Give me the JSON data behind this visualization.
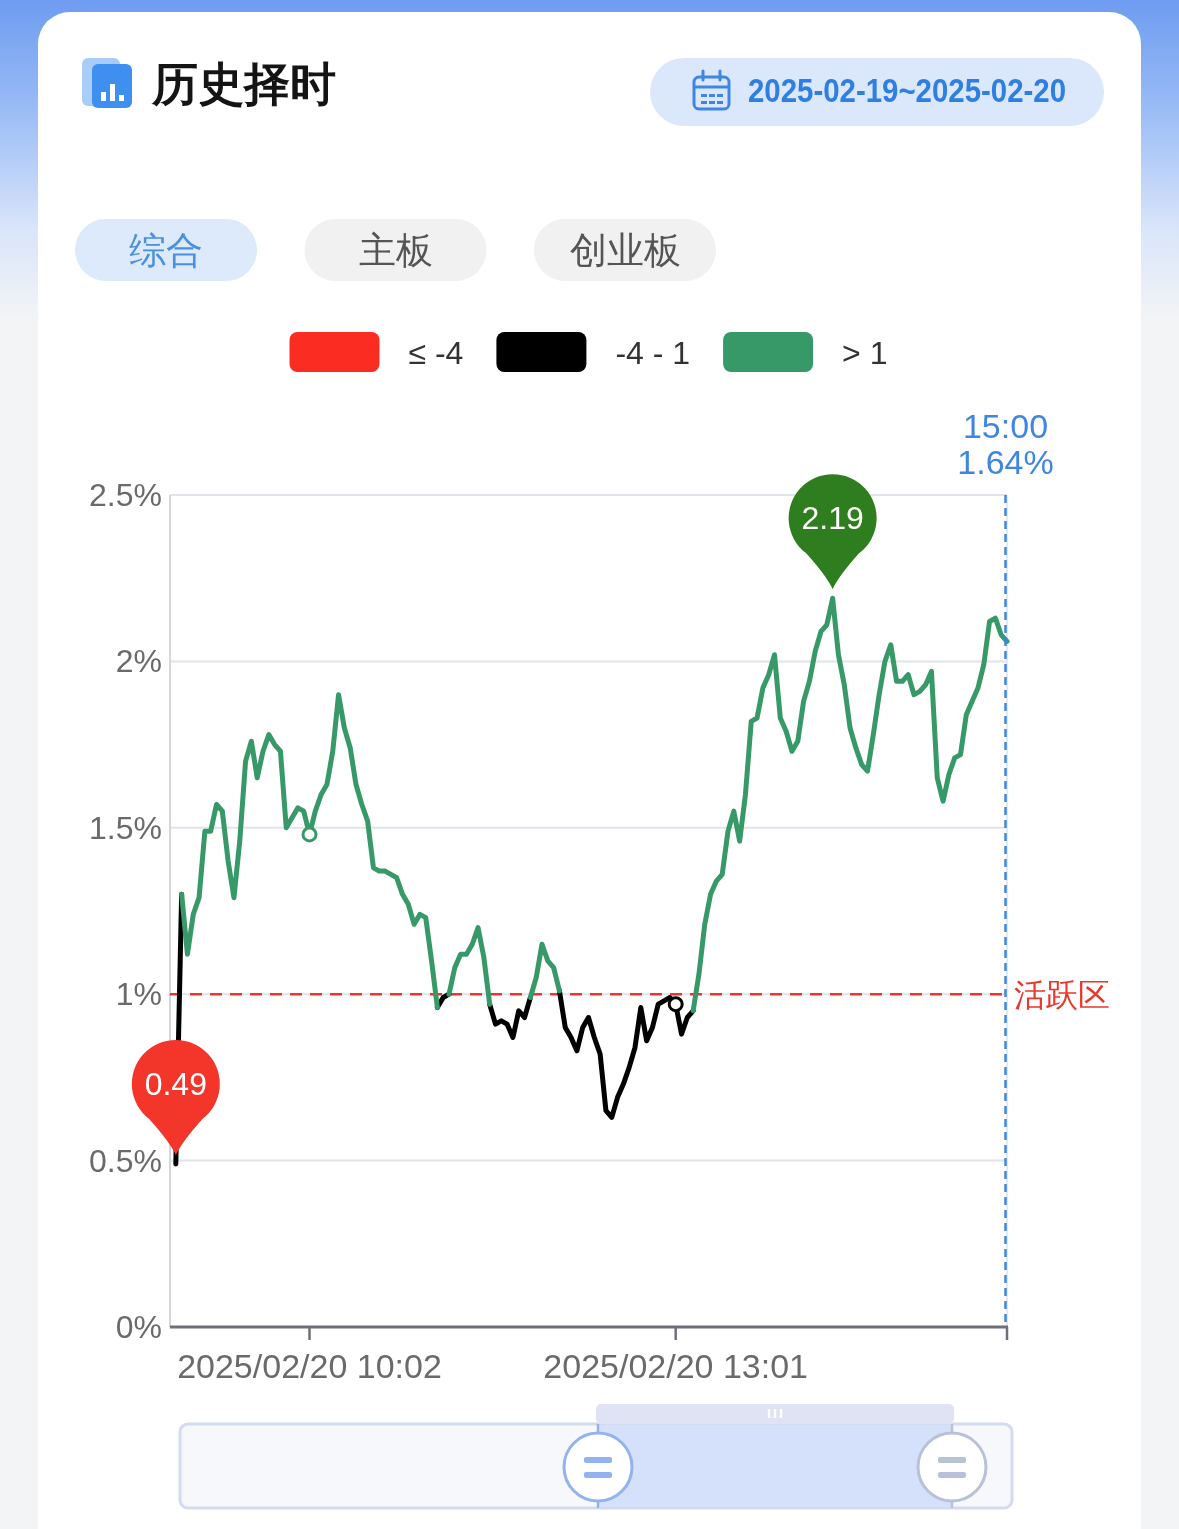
{
  "chart_data": {
    "type": "line",
    "title": "历史择时",
    "subtitle": "2025-02-19~2025-02-20",
    "annotations": [
      "综合",
      "主板",
      "创业板",
      "15:00 1.64%",
      {
        "text": "0.49",
        "y": 0.49
      },
      {
        "text": "2.19",
        "y": 2.19
      }
    ],
    "categories": [
      null,
      null,
      null,
      null,
      null,
      null,
      null,
      null,
      null,
      null,
      null,
      null,
      null,
      null,
      null,
      null,
      null,
      null,
      null,
      null,
      null,
      null,
      null,
      null,
      "2025/02/20 10:02",
      null,
      null,
      null,
      null,
      null,
      null,
      null,
      null,
      null,
      null,
      null,
      null,
      null,
      null,
      null,
      null,
      null,
      null,
      null,
      null,
      null,
      null,
      null,
      null,
      null,
      null,
      null,
      null,
      null,
      null,
      null,
      null,
      null,
      null,
      null,
      null,
      null,
      null,
      null,
      null,
      null,
      null,
      null,
      null,
      null,
      null,
      null,
      null,
      null,
      null,
      null,
      null,
      null,
      null,
      null,
      null,
      null,
      null,
      null,
      null,
      null,
      null,
      "2025/02/20 13:01",
      null,
      null,
      null,
      null,
      null,
      null,
      null,
      null,
      null,
      null,
      null,
      null,
      null,
      null,
      null,
      null,
      null,
      null,
      null,
      null,
      null,
      null,
      null,
      null,
      null,
      null,
      null,
      null,
      null,
      null,
      null,
      null,
      null,
      null,
      null,
      null,
      null,
      null,
      null,
      null,
      null,
      null,
      null,
      null,
      null,
      null,
      null,
      null,
      null,
      null,
      null,
      null,
      null,
      null,
      null,
      null,
      null
    ],
    "series": [
      {
        "name": "≤ -4",
        "color": "#fb2d22",
        "values": [
          null,
          null,
          null,
          null,
          null,
          null,
          null,
          null,
          null,
          null,
          null,
          null,
          null,
          null,
          null,
          null,
          null,
          null,
          null,
          null,
          null,
          null,
          null,
          null,
          null,
          null,
          null,
          null,
          null,
          null,
          null,
          null,
          null,
          null,
          null,
          null,
          null,
          null,
          null,
          null,
          null,
          null,
          null,
          null,
          null,
          null,
          null,
          null,
          null,
          null,
          null,
          null,
          null,
          null,
          null,
          null,
          null,
          null,
          null,
          null,
          null,
          null,
          null,
          null,
          null,
          null,
          null,
          null,
          null,
          null,
          null,
          null,
          null,
          null,
          null,
          null,
          null,
          null,
          null,
          null,
          null,
          null,
          null,
          null,
          null,
          null,
          null,
          null,
          null,
          null,
          null,
          null,
          null,
          null,
          null,
          null,
          null,
          null,
          null,
          null,
          null,
          null,
          null,
          null,
          null,
          null,
          null,
          null,
          null,
          null,
          null,
          null,
          null,
          null,
          null,
          null,
          null,
          null,
          null,
          null,
          null,
          null,
          null,
          null,
          null,
          null,
          null,
          null,
          null,
          null,
          null,
          null,
          null,
          null,
          null,
          null,
          null,
          null,
          null,
          null,
          null,
          null,
          null,
          null,
          null
        ]
      },
      {
        "name": "-4 - 1",
        "color": "#000000",
        "values": [
          null,
          0.49,
          1.3,
          null,
          null,
          null,
          null,
          null,
          null,
          null,
          null,
          null,
          null,
          null,
          null,
          null,
          null,
          null,
          null,
          null,
          null,
          null,
          null,
          null,
          null,
          null,
          null,
          null,
          null,
          null,
          null,
          null,
          null,
          null,
          null,
          null,
          null,
          null,
          null,
          null,
          null,
          null,
          null,
          null,
          null,
          null,
          0.96,
          0.99,
          1,
          null,
          null,
          null,
          null,
          null,
          null,
          0.97,
          0.91,
          0.92,
          0.91,
          0.87,
          0.95,
          0.93,
          0.99,
          null,
          null,
          null,
          null,
          1.01,
          0.9,
          0.87,
          0.83,
          0.9,
          0.93,
          0.87,
          0.82,
          0.65,
          0.63,
          0.69,
          0.73,
          0.78,
          0.84,
          0.96,
          0.86,
          0.9,
          0.97,
          0.98,
          0.99,
          0.97,
          0.88,
          0.93,
          0.95,
          null,
          null,
          null,
          null,
          null,
          null,
          null,
          null,
          null,
          null,
          null,
          null,
          null,
          null,
          null,
          null,
          null,
          null,
          null,
          null,
          null,
          null,
          null,
          null,
          null,
          null,
          null,
          null,
          null,
          null,
          null,
          null,
          null,
          null,
          null,
          null,
          null,
          null,
          null,
          null,
          null,
          null,
          null,
          null,
          null,
          null,
          null,
          null,
          null,
          null,
          null,
          null,
          null,
          null
        ]
      },
      {
        "name": "> 1",
        "color": "#379868",
        "values": [
          null,
          null,
          1.3,
          1.12,
          1.24,
          1.29,
          1.49,
          1.49,
          1.57,
          1.55,
          1.4,
          1.29,
          1.46,
          1.7,
          1.76,
          1.65,
          1.73,
          1.78,
          1.75,
          1.73,
          1.5,
          1.53,
          1.56,
          1.55,
          1.48,
          1.55,
          1.6,
          1.63,
          1.73,
          1.9,
          1.8,
          1.74,
          1.63,
          1.57,
          1.52,
          1.38,
          1.37,
          1.37,
          1.36,
          1.35,
          1.3,
          1.27,
          1.21,
          1.24,
          1.23,
          1.1,
          0.96,
          null,
          1,
          1.08,
          1.12,
          1.12,
          1.15,
          1.2,
          1.11,
          0.97,
          null,
          null,
          null,
          null,
          null,
          null,
          0.99,
          1.05,
          1.15,
          1.1,
          1.08,
          1.01,
          null,
          null,
          null,
          null,
          null,
          null,
          null,
          null,
          null,
          null,
          null,
          null,
          null,
          null,
          null,
          null,
          null,
          null,
          null,
          null,
          null,
          null,
          0.95,
          1.06,
          1.21,
          1.3,
          1.34,
          1.36,
          1.49,
          1.55,
          1.46,
          1.6,
          1.82,
          1.83,
          1.92,
          1.96,
          2.02,
          1.83,
          1.79,
          1.73,
          1.76,
          1.88,
          1.94,
          2.03,
          2.09,
          2.11,
          2.19,
          2.02,
          1.93,
          1.8,
          1.74,
          1.69,
          1.67,
          1.78,
          1.9,
          2.0,
          2.05,
          1.94,
          1.94,
          1.96,
          1.9,
          1.91,
          1.93,
          1.97,
          1.65,
          1.58,
          1.66,
          1.71,
          1.72,
          1.84,
          1.88,
          1.92,
          1.99,
          2.12,
          2.13,
          2.08,
          2.06
        ]
      },
      {
        "type": "scatter",
        "x": [
          "2025/02/20 10:02",
          "2025/02/20 13:01"
        ],
        "values": [
          1.48,
          0.97
        ],
        "colors": [
          "#379868",
          "#000000"
        ]
      }
    ],
    "ylim": [
      0,
      2.5
    ],
    "yticks": [
      {
        "value": 0,
        "label": "0%"
      },
      {
        "value": 0.5,
        "label": "0.5%"
      },
      {
        "value": 1,
        "label": "1%"
      },
      {
        "value": 1.5,
        "label": "1.5%"
      },
      {
        "value": 2,
        "label": "2%"
      },
      {
        "value": 2.5,
        "label": "2.5%"
      }
    ],
    "grid": "y",
    "legend": "top",
    "line_style": "solid",
    "ref_lines": [
      {
        "axis": "y",
        "value": 1,
        "label": "活跃区",
        "color": "#e8382c",
        "line_style": "dashed"
      }
    ]
  }
}
